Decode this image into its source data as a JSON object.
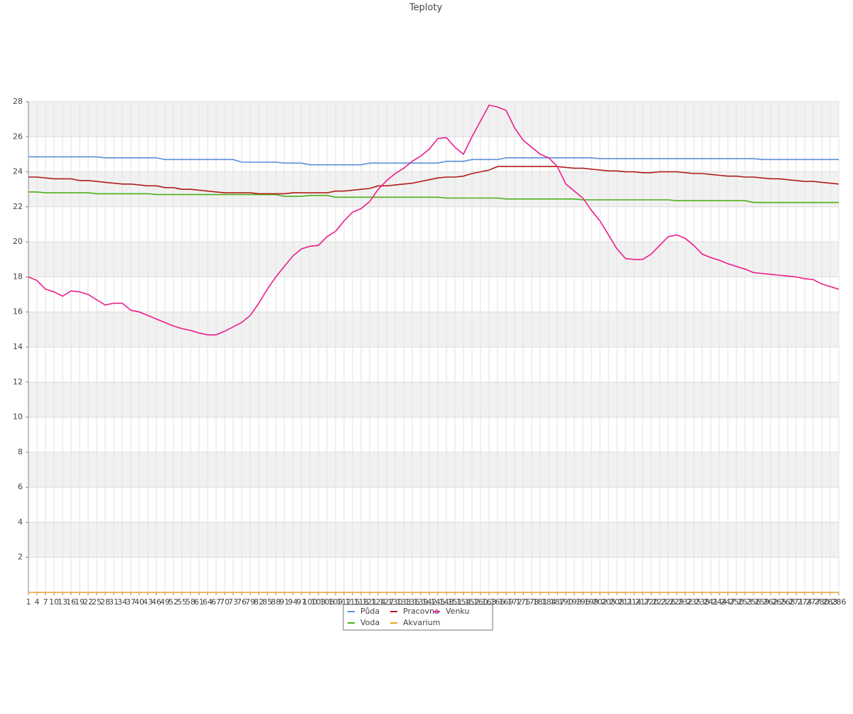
{
  "chart_data": {
    "type": "line",
    "title": "Teploty",
    "x": [
      1,
      4,
      7,
      10,
      13,
      16,
      19,
      22,
      25,
      28,
      31,
      34,
      37,
      40,
      43,
      46,
      49,
      52,
      55,
      58,
      61,
      64,
      67,
      70,
      73,
      76,
      79,
      82,
      85,
      88,
      91,
      94,
      97,
      100,
      103,
      106,
      109,
      112,
      115,
      118,
      121,
      124,
      127,
      130,
      133,
      136,
      139,
      142,
      145,
      148,
      151,
      154,
      157,
      160,
      163,
      166,
      169,
      172,
      175,
      178,
      181,
      184,
      187,
      190,
      193,
      196,
      199,
      202,
      205,
      208,
      211,
      214,
      217,
      220,
      223,
      226,
      229,
      232,
      235,
      238,
      241,
      244,
      247,
      250,
      253,
      256,
      259,
      262,
      265,
      268,
      271,
      274,
      277,
      280,
      283,
      286
    ],
    "xlim": [
      1,
      286
    ],
    "ylim": [
      0,
      28
    ],
    "yticks": [
      2,
      4,
      6,
      8,
      10,
      12,
      14,
      16,
      18,
      20,
      22,
      24,
      26,
      28
    ],
    "grid": true,
    "series": [
      {
        "name": "Půda",
        "color": "#5b8fdc",
        "values": [
          24.85,
          24.85,
          24.85,
          24.85,
          24.85,
          24.85,
          24.85,
          24.85,
          24.85,
          24.8,
          24.8,
          24.8,
          24.8,
          24.8,
          24.8,
          24.8,
          24.7,
          24.7,
          24.7,
          24.7,
          24.7,
          24.7,
          24.7,
          24.7,
          24.7,
          24.55,
          24.55,
          24.55,
          24.55,
          24.55,
          24.5,
          24.5,
          24.5,
          24.4,
          24.4,
          24.4,
          24.4,
          24.4,
          24.4,
          24.4,
          24.5,
          24.5,
          24.5,
          24.5,
          24.5,
          24.5,
          24.5,
          24.5,
          24.5,
          24.6,
          24.6,
          24.6,
          24.7,
          24.7,
          24.7,
          24.7,
          24.8,
          24.8,
          24.8,
          24.8,
          24.8,
          24.8,
          24.8,
          24.8,
          24.8,
          24.8,
          24.8,
          24.75,
          24.75,
          24.75,
          24.75,
          24.75,
          24.75,
          24.75,
          24.75,
          24.75,
          24.75,
          24.75,
          24.75,
          24.75,
          24.75,
          24.75,
          24.75,
          24.75,
          24.75,
          24.75,
          24.7,
          24.7,
          24.7,
          24.7,
          24.7,
          24.7,
          24.7,
          24.7,
          24.7,
          24.7
        ]
      },
      {
        "name": "Voda",
        "color": "#4cae1a",
        "values": [
          22.85,
          22.85,
          22.8,
          22.8,
          22.8,
          22.8,
          22.8,
          22.8,
          22.75,
          22.75,
          22.75,
          22.75,
          22.75,
          22.75,
          22.75,
          22.7,
          22.7,
          22.7,
          22.7,
          22.7,
          22.7,
          22.7,
          22.7,
          22.7,
          22.7,
          22.7,
          22.7,
          22.7,
          22.7,
          22.7,
          22.6,
          22.6,
          22.6,
          22.65,
          22.65,
          22.65,
          22.55,
          22.55,
          22.55,
          22.55,
          22.55,
          22.55,
          22.55,
          22.55,
          22.55,
          22.55,
          22.55,
          22.55,
          22.55,
          22.5,
          22.5,
          22.5,
          22.5,
          22.5,
          22.5,
          22.5,
          22.45,
          22.45,
          22.45,
          22.45,
          22.45,
          22.45,
          22.45,
          22.45,
          22.45,
          22.4,
          22.4,
          22.4,
          22.4,
          22.4,
          22.4,
          22.4,
          22.4,
          22.4,
          22.4,
          22.4,
          22.35,
          22.35,
          22.35,
          22.35,
          22.35,
          22.35,
          22.35,
          22.35,
          22.35,
          22.25,
          22.25,
          22.25,
          22.25,
          22.25,
          22.25,
          22.25,
          22.25,
          22.25,
          22.25,
          22.25
        ]
      },
      {
        "name": "Pracovna",
        "color": "#b01c1c",
        "values": [
          23.7,
          23.7,
          23.65,
          23.6,
          23.6,
          23.6,
          23.5,
          23.5,
          23.45,
          23.4,
          23.35,
          23.3,
          23.3,
          23.25,
          23.2,
          23.2,
          23.1,
          23.1,
          23.0,
          23.0,
          22.95,
          22.9,
          22.85,
          22.8,
          22.8,
          22.8,
          22.8,
          22.75,
          22.75,
          22.75,
          22.75,
          22.8,
          22.8,
          22.8,
          22.8,
          22.8,
          22.9,
          22.9,
          22.95,
          23.0,
          23.05,
          23.2,
          23.2,
          23.25,
          23.3,
          23.35,
          23.45,
          23.55,
          23.65,
          23.7,
          23.7,
          23.75,
          23.9,
          24.0,
          24.1,
          24.3,
          24.3,
          24.3,
          24.3,
          24.3,
          24.3,
          24.3,
          24.3,
          24.25,
          24.2,
          24.2,
          24.15,
          24.1,
          24.05,
          24.05,
          24.0,
          24.0,
          23.95,
          23.95,
          24.0,
          24.0,
          24.0,
          23.95,
          23.9,
          23.9,
          23.85,
          23.8,
          23.75,
          23.75,
          23.7,
          23.7,
          23.65,
          23.6,
          23.6,
          23.55,
          23.5,
          23.45,
          23.45,
          23.4,
          23.35,
          23.3
        ]
      },
      {
        "name": "Akvarium",
        "color": "#f0a020",
        "values": [
          0,
          0,
          0,
          0,
          0,
          0,
          0,
          0,
          0,
          0,
          0,
          0,
          0,
          0,
          0,
          0,
          0,
          0,
          0,
          0,
          0,
          0,
          0,
          0,
          0,
          0,
          0,
          0,
          0,
          0,
          0,
          0,
          0,
          0,
          0,
          0,
          0,
          0,
          0,
          0,
          0,
          0,
          0,
          0,
          0,
          0,
          0,
          0,
          0,
          0,
          0,
          0,
          0,
          0,
          0,
          0,
          0,
          0,
          0,
          0,
          0,
          0,
          0,
          0,
          0,
          0,
          0,
          0,
          0,
          0,
          0,
          0,
          0,
          0,
          0,
          0,
          0,
          0,
          0,
          0,
          0,
          0,
          0,
          0,
          0,
          0,
          0,
          0,
          0,
          0,
          0,
          0,
          0,
          0,
          0,
          0
        ]
      },
      {
        "name": "Venku",
        "color": "#ee1c8c",
        "values": [
          18.0,
          17.8,
          17.3,
          17.15,
          16.9,
          17.2,
          17.15,
          17.0,
          16.7,
          16.4,
          16.5,
          16.5,
          16.1,
          16.0,
          15.8,
          15.6,
          15.4,
          15.2,
          15.05,
          14.95,
          14.8,
          14.7,
          14.7,
          14.9,
          15.15,
          15.4,
          15.8,
          16.5,
          17.3,
          18.0,
          18.6,
          19.2,
          19.6,
          19.75,
          19.8,
          20.3,
          20.6,
          21.2,
          21.7,
          21.9,
          22.3,
          23.0,
          23.5,
          23.9,
          24.2,
          24.6,
          24.9,
          25.3,
          25.9,
          25.95,
          25.4,
          25.0,
          26.0,
          26.9,
          27.8,
          27.7,
          27.5,
          26.5,
          25.8,
          25.4,
          25.0,
          24.8,
          24.3,
          23.3,
          22.9,
          22.5,
          21.8,
          21.2,
          20.4,
          19.6,
          19.05,
          19.0,
          19.0,
          19.3,
          19.8,
          20.3,
          20.4,
          20.2,
          19.8,
          19.3,
          19.1,
          18.95,
          18.75,
          18.6,
          18.45,
          18.25,
          18.2,
          18.15,
          18.1,
          18.05,
          18.0,
          17.9,
          17.85,
          17.6,
          17.45,
          17.3
        ]
      }
    ]
  }
}
